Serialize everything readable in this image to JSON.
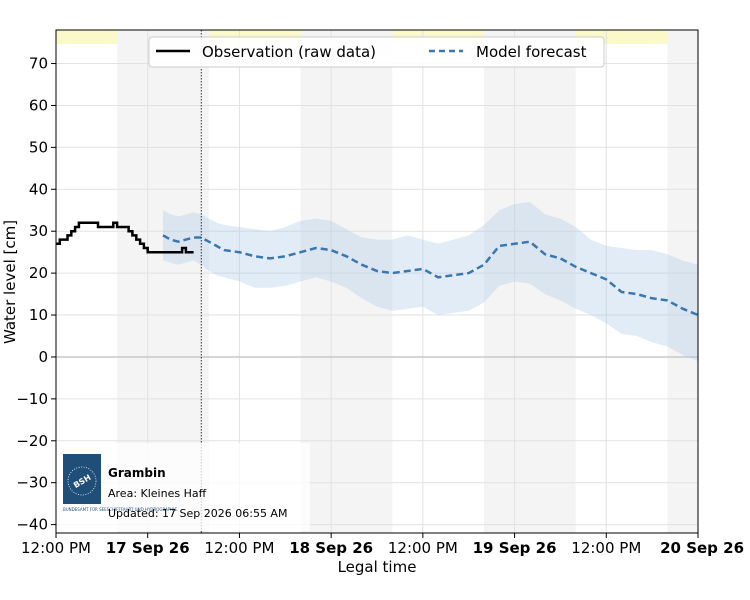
{
  "chart_data": {
    "type": "line",
    "xlabel": "Legal time",
    "ylabel": "Water level [cm]",
    "ylim": [
      -42,
      78
    ],
    "y_ticks": [
      70,
      60,
      50,
      40,
      30,
      20,
      10,
      0,
      -10,
      -20,
      -30,
      -40
    ],
    "x_ticks": [
      {
        "t": 0,
        "label": "12:00 PM",
        "bold": false
      },
      {
        "t": 12,
        "label": "17 Sep 26",
        "bold": true
      },
      {
        "t": 24,
        "label": "12:00 PM",
        "bold": false
      },
      {
        "t": 36,
        "label": "18 Sep 26",
        "bold": true
      },
      {
        "t": 48,
        "label": "12:00 PM",
        "bold": false
      },
      {
        "t": 60,
        "label": "19 Sep 26",
        "bold": true
      },
      {
        "t": 72,
        "label": "12:00 PM",
        "bold": false
      },
      {
        "t": 84,
        "label": "20 Sep 26",
        "bold": true
      }
    ],
    "xlim_hours": [
      0,
      84
    ],
    "now_marker_hours": 19,
    "legend": {
      "position": "top-center",
      "entries": [
        {
          "label": "Observation (raw data)",
          "style": "solid",
          "color": "#000000"
        },
        {
          "label": "Model forecast",
          "style": "dashed",
          "color": "#3a76b0"
        }
      ]
    },
    "observation": {
      "color": "#000000",
      "t": [
        0,
        0.5,
        1,
        1.5,
        2,
        2.5,
        3,
        3.5,
        4,
        4.5,
        5,
        5.5,
        6,
        6.5,
        7,
        7.5,
        8,
        8.5,
        9,
        9.5,
        10,
        10.5,
        11,
        11.5,
        12,
        12.5,
        13,
        13.5,
        14,
        14.5,
        15,
        15.5,
        16,
        16.5,
        17,
        17.5,
        18
      ],
      "y": [
        27,
        28,
        28,
        29,
        30,
        31,
        32,
        32,
        32,
        32,
        32,
        31,
        31,
        31,
        31,
        32,
        31,
        31,
        31,
        30,
        29,
        28,
        27,
        26,
        25,
        25,
        25,
        25,
        25,
        25,
        25,
        25,
        25,
        26,
        25,
        25,
        25
      ]
    },
    "forecast": {
      "color": "#3a76b0",
      "t": [
        14,
        15,
        16,
        17,
        18,
        19,
        20,
        21,
        22,
        24,
        26,
        28,
        30,
        32,
        34,
        36,
        38,
        40,
        42,
        44,
        46,
        48,
        50,
        52,
        54,
        56,
        58,
        60,
        62,
        64,
        66,
        68,
        70,
        72,
        74,
        76,
        78,
        80,
        82,
        84
      ],
      "y": [
        29,
        28,
        27.5,
        28,
        28.5,
        28.5,
        27.5,
        26.5,
        25.5,
        25,
        24,
        23.5,
        24,
        25,
        26,
        25.5,
        24,
        22,
        20.5,
        20,
        20.5,
        21,
        19,
        19.5,
        20,
        22,
        26.5,
        27,
        27.5,
        24.5,
        23.5,
        21.5,
        20,
        18.5,
        15.5,
        15,
        14,
        13.5,
        11.5,
        10
      ]
    },
    "forecast_band": {
      "color": "#a8c8e8",
      "t": [
        14,
        15,
        16,
        17,
        18,
        19,
        20,
        21,
        22,
        24,
        26,
        28,
        30,
        32,
        34,
        36,
        38,
        40,
        42,
        44,
        46,
        48,
        50,
        52,
        54,
        56,
        58,
        60,
        62,
        64,
        66,
        68,
        70,
        72,
        74,
        76,
        78,
        80,
        82,
        84
      ],
      "upper": [
        35,
        34,
        33.5,
        34,
        34.5,
        34,
        33,
        32,
        31.5,
        31,
        30.5,
        30,
        31,
        32.5,
        33,
        32.5,
        30.5,
        28.5,
        28,
        28,
        29,
        28,
        27,
        28,
        29,
        31.5,
        35,
        36.5,
        37,
        34,
        33,
        31,
        28,
        26.5,
        26,
        25.5,
        25.5,
        24.5,
        23,
        22
      ],
      "lower": [
        23,
        22.5,
        22,
        22.5,
        23,
        22,
        20.5,
        19.5,
        19,
        18,
        16.5,
        16.5,
        17,
        18,
        19,
        18,
        16.5,
        14,
        12,
        11,
        11.5,
        12,
        10,
        10.5,
        11,
        13,
        17,
        18,
        17.5,
        15,
        13.5,
        11.5,
        10,
        8,
        5.5,
        5,
        3.5,
        2.5,
        0.5,
        -1
      ]
    },
    "shaded_night_periods": [
      [
        8,
        20
      ],
      [
        32,
        44
      ],
      [
        56,
        68
      ],
      [
        80,
        84
      ]
    ],
    "info_box": {
      "logo_text": "BSH",
      "logo_subtext": "BUNDESAMT FÜR SEESCHIFFFAHRT UND HYDROGRAPHIE",
      "station": "Grambin",
      "area": "Area: Kleines Haff",
      "updated": "Updated: 17 Sep 2026 06:55 AM"
    }
  }
}
